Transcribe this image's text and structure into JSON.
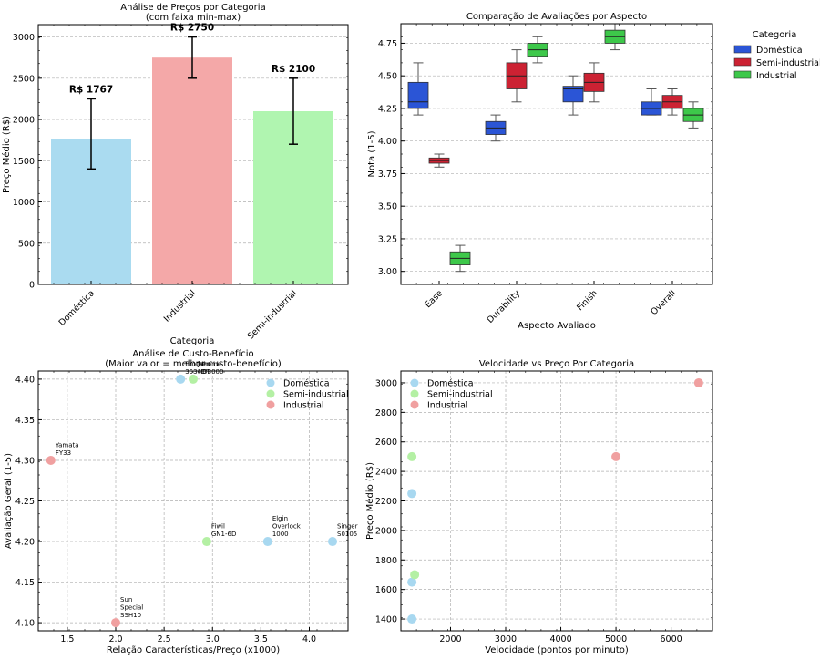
{
  "chart_data": [
    {
      "type": "bar",
      "title": "Análise de Preços por Categoria",
      "subtitle": "(com faixa min-max)",
      "xlabel": "Categoria",
      "ylabel": "Preço Médio (R$)",
      "ylim": [
        0,
        3150
      ],
      "yticks": [
        0,
        500,
        1000,
        1500,
        2000,
        2500,
        3000
      ],
      "categories": [
        "Doméstica",
        "Industrial",
        "Semi-industrial"
      ],
      "values": [
        1767,
        2750,
        2100
      ],
      "labels": [
        "R$ 1767",
        "R$ 2750",
        "R$ 2100"
      ],
      "err_min": [
        1400,
        2500,
        1700
      ],
      "err_max": [
        2250,
        3000,
        2500
      ],
      "colors": [
        "#aadbf0",
        "#f4a8a8",
        "#b0f5b0"
      ]
    },
    {
      "type": "boxplot",
      "title": "Comparação de Avaliações por Aspecto",
      "xlabel": "Aspecto Avaliado",
      "ylabel": "Nota (1-5)",
      "ylim": [
        2.9,
        4.9
      ],
      "yticks": [
        "3.00",
        "3.25",
        "3.50",
        "3.75",
        "4.00",
        "4.25",
        "4.50",
        "4.75"
      ],
      "categories": [
        "Ease",
        "Durability",
        "Finish",
        "Overall"
      ],
      "legend_title": "Categoria",
      "series": [
        {
          "name": "Doméstica",
          "color": "#2b55d6",
          "boxes": [
            {
              "min": 4.2,
              "q1": 4.25,
              "med": 4.3,
              "q3": 4.45,
              "max": 4.6
            },
            {
              "min": 4.0,
              "q1": 4.05,
              "med": 4.1,
              "q3": 4.15,
              "max": 4.2
            },
            {
              "min": 4.2,
              "q1": 4.3,
              "med": 4.4,
              "q3": 4.42,
              "max": 4.5
            },
            {
              "min": 4.2,
              "q1": 4.2,
              "med": 4.25,
              "q3": 4.3,
              "max": 4.4
            }
          ]
        },
        {
          "name": "Semi-industrial",
          "color": "#cc2233",
          "boxes": [
            {
              "min": 3.8,
              "q1": 3.83,
              "med": 3.85,
              "q3": 3.87,
              "max": 3.9
            },
            {
              "min": 4.3,
              "q1": 4.4,
              "med": 4.5,
              "q3": 4.6,
              "max": 4.7
            },
            {
              "min": 4.3,
              "q1": 4.38,
              "med": 4.45,
              "q3": 4.52,
              "max": 4.6
            },
            {
              "min": 4.2,
              "q1": 4.25,
              "med": 4.3,
              "q3": 4.35,
              "max": 4.4
            }
          ]
        },
        {
          "name": "Industrial",
          "color": "#3dc84a",
          "boxes": [
            {
              "min": 3.0,
              "q1": 3.05,
              "med": 3.1,
              "q3": 3.15,
              "max": 3.2
            },
            {
              "min": 4.6,
              "q1": 4.65,
              "med": 4.7,
              "q3": 4.75,
              "max": 4.8
            },
            {
              "min": 4.7,
              "q1": 4.75,
              "med": 4.8,
              "q3": 4.85,
              "max": 4.9
            },
            {
              "min": 4.1,
              "q1": 4.15,
              "med": 4.2,
              "q3": 4.25,
              "max": 4.3
            }
          ]
        }
      ]
    },
    {
      "type": "scatter",
      "title": "Análise de Custo-Benefício",
      "subtitle": "(Maior valor = melhor custo-benefício)",
      "xlabel": "Relação Características/Preço (x1000)",
      "ylabel": "Avaliação Geral (1-5)",
      "xlim": [
        1.2,
        4.4
      ],
      "ylim": [
        4.09,
        4.41
      ],
      "xticks": [
        "1.5",
        "2.0",
        "2.5",
        "3.0",
        "3.5",
        "4.0"
      ],
      "yticks": [
        "4.10",
        "4.15",
        "4.20",
        "4.25",
        "4.30",
        "4.35",
        "4.40"
      ],
      "series": [
        {
          "name": "Doméstica",
          "color": "#a8d8f0",
          "points": [
            {
              "x": 2.67,
              "y": 4.4,
              "label": "Brother\n3534DT"
            },
            {
              "x": 3.57,
              "y": 4.2,
              "label": "Elgin\nOverlock\n1000"
            },
            {
              "x": 4.24,
              "y": 4.2,
              "label": "Singer\nS0105"
            }
          ]
        },
        {
          "name": "Semi-industrial",
          "color": "#b4f0a4",
          "points": [
            {
              "x": 2.8,
              "y": 4.4,
              "label": "Janome\nHD3000"
            },
            {
              "x": 2.94,
              "y": 4.2,
              "label": "Fiwil\nGN1-6D"
            }
          ]
        },
        {
          "name": "Industrial",
          "color": "#f0a0a0",
          "points": [
            {
              "x": 1.33,
              "y": 4.3,
              "label": "Yamata\nFY33"
            },
            {
              "x": 2.0,
              "y": 4.1,
              "label": "Sun\nSpecial\nSSH10"
            }
          ]
        }
      ]
    },
    {
      "type": "scatter",
      "title": "Velocidade vs Preço Por Categoria",
      "xlabel": "Velocidade (pontos por minuto)",
      "ylabel": "Preço Médio (R$)",
      "xlim": [
        1100,
        6750
      ],
      "ylim": [
        1320,
        3080
      ],
      "xticks": [
        "2000",
        "3000",
        "4000",
        "5000",
        "6000"
      ],
      "yticks": [
        "1400",
        "1600",
        "1800",
        "2000",
        "2200",
        "2400",
        "2600",
        "2800",
        "3000"
      ],
      "series": [
        {
          "name": "Doméstica",
          "color": "#a8d8f0",
          "points": [
            {
              "x": 1300,
              "y": 2250
            },
            {
              "x": 1300,
              "y": 1650
            },
            {
              "x": 1300,
              "y": 1400
            }
          ]
        },
        {
          "name": "Semi-industrial",
          "color": "#b4f0a4",
          "points": [
            {
              "x": 1300,
              "y": 2500
            },
            {
              "x": 1350,
              "y": 1700
            }
          ]
        },
        {
          "name": "Industrial",
          "color": "#f0a0a0",
          "points": [
            {
              "x": 5000,
              "y": 2500
            },
            {
              "x": 6500,
              "y": 3000
            }
          ]
        }
      ]
    }
  ]
}
